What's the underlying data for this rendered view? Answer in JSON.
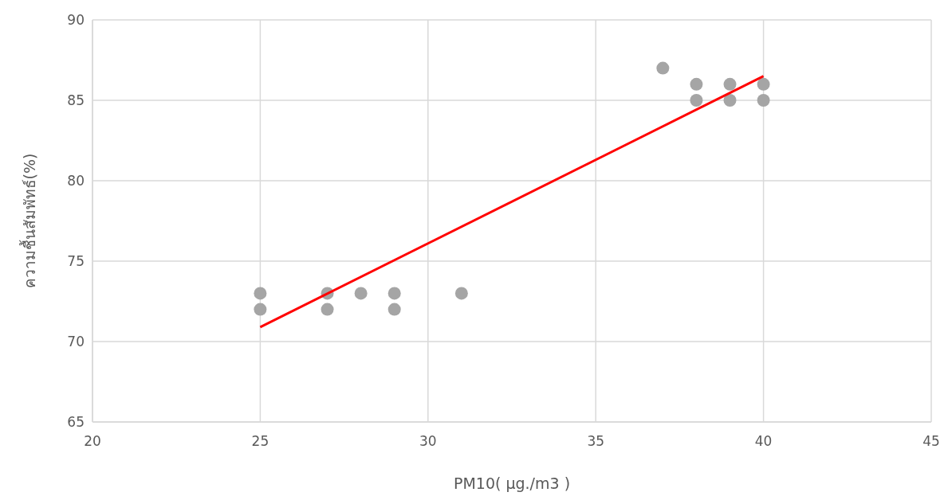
{
  "chart_data": {
    "type": "scatter",
    "xlabel": "PM10( µg./m3 )",
    "ylabel": "ความชื้นสัมพัทธ์(%)",
    "xlim": [
      20,
      45
    ],
    "ylim": [
      65,
      90
    ],
    "xticks": [
      20,
      25,
      30,
      35,
      40,
      45
    ],
    "yticks": [
      65,
      70,
      75,
      80,
      85,
      90
    ],
    "grid": true,
    "series": [
      {
        "marker": "circle",
        "color": "#a5a5a5",
        "x": [
          25,
          25,
          27,
          27,
          28,
          29,
          29,
          31,
          37,
          38,
          38,
          39,
          39,
          40,
          40
        ],
        "values": [
          73,
          72,
          73,
          72,
          73,
          73,
          72,
          73,
          87,
          86,
          85,
          86,
          85,
          86,
          85
        ]
      },
      {
        "type": "line",
        "color": "#ff0000",
        "x": [
          25,
          40
        ],
        "values": [
          70.9,
          86.5
        ]
      }
    ]
  }
}
